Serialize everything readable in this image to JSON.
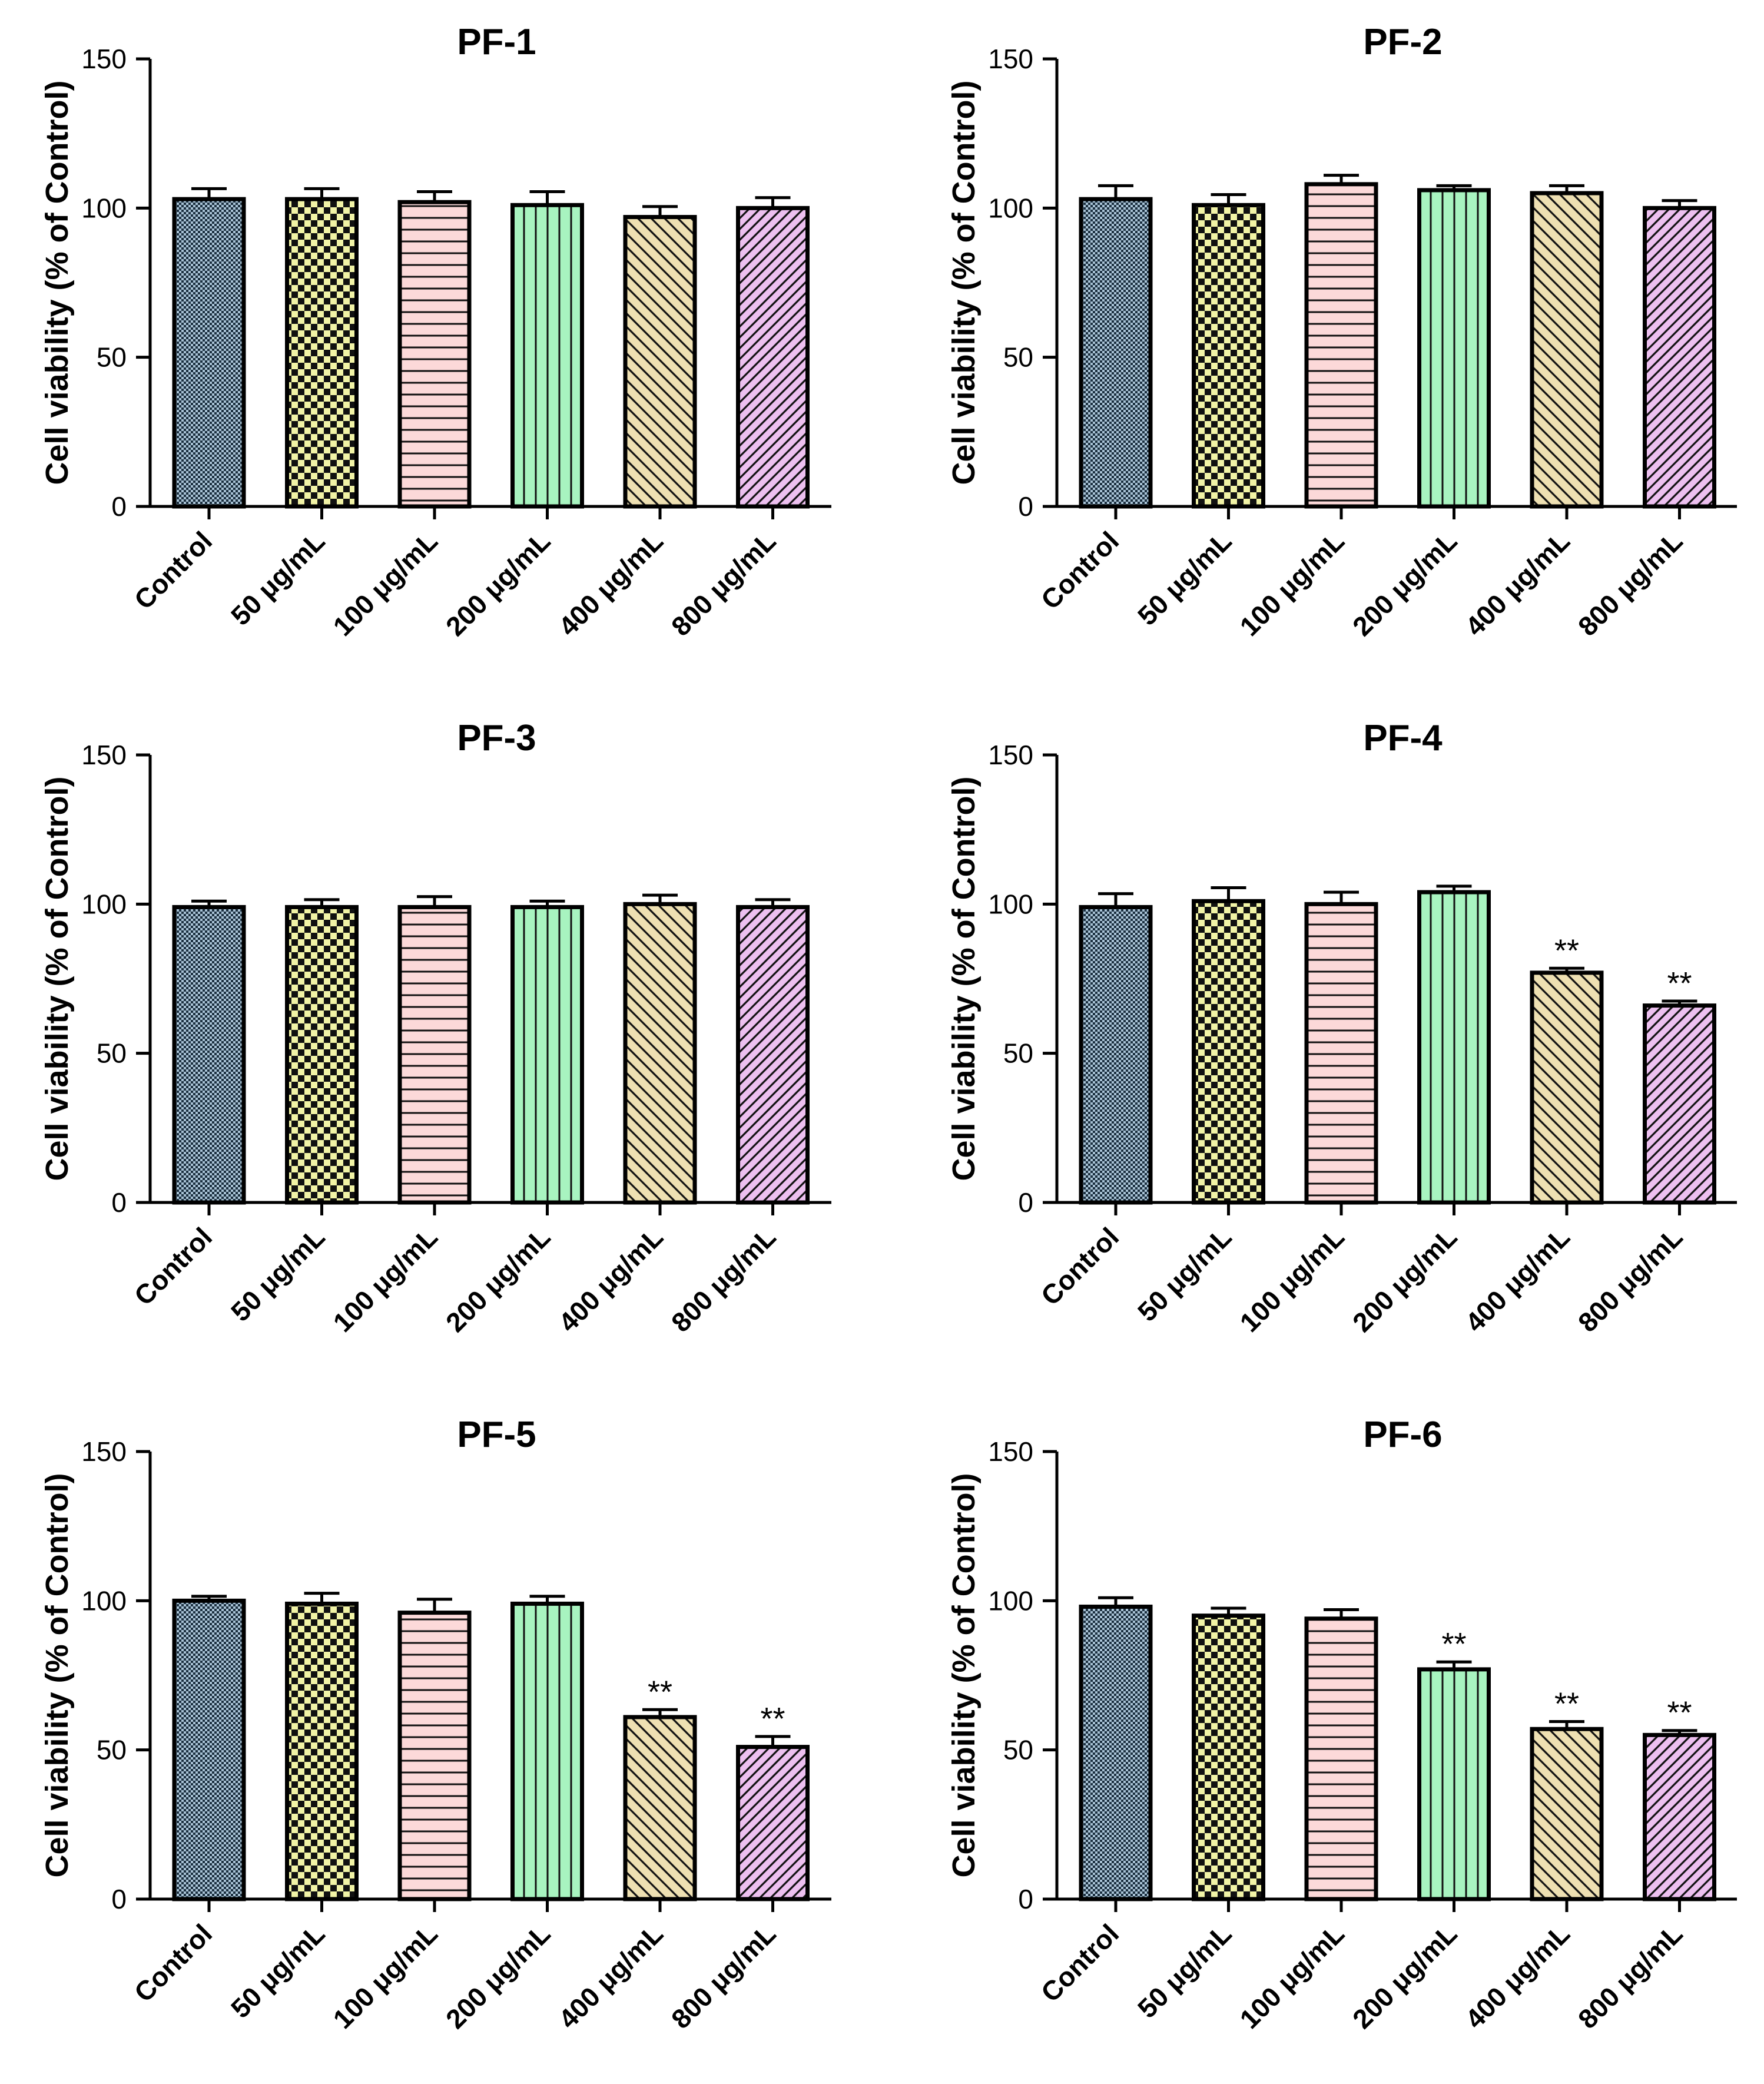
{
  "chart_data": [
    {
      "type": "bar",
      "title": "PF-1",
      "ylabel": "Cell viability (% of Control)",
      "xlabel": "",
      "ylim": [
        0,
        150
      ],
      "yticks": [
        "0",
        "50",
        "100",
        "150"
      ],
      "categories": [
        "Control",
        "50 μg/mL",
        "100 μg/mL",
        "200 μg/mL",
        "400 μg/mL",
        "800 μg/mL"
      ],
      "values": [
        103,
        103,
        102,
        101,
        97,
        100
      ],
      "errors": [
        3.5,
        3.5,
        3.5,
        4.5,
        3.5,
        3.5
      ],
      "significance": [
        "",
        "",
        "",
        "",
        "",
        ""
      ]
    },
    {
      "type": "bar",
      "title": "PF-2",
      "ylabel": "Cell viability (% of Control)",
      "xlabel": "",
      "ylim": [
        0,
        150
      ],
      "yticks": [
        "0",
        "50",
        "100",
        "150"
      ],
      "categories": [
        "Control",
        "50 μg/mL",
        "100 μg/mL",
        "200 μg/mL",
        "400 μg/mL",
        "800 μg/mL"
      ],
      "values": [
        103,
        101,
        108,
        106,
        105,
        100
      ],
      "errors": [
        4.5,
        3.5,
        3.0,
        1.5,
        2.5,
        2.5
      ],
      "significance": [
        "",
        "",
        "",
        "",
        "",
        ""
      ]
    },
    {
      "type": "bar",
      "title": "PF-3",
      "ylabel": "Cell viability (% of Control)",
      "xlabel": "",
      "ylim": [
        0,
        150
      ],
      "yticks": [
        "0",
        "50",
        "100",
        "150"
      ],
      "categories": [
        "Control",
        "50 μg/mL",
        "100 μg/mL",
        "200 μg/mL",
        "400 μg/mL",
        "800 μg/mL"
      ],
      "values": [
        99,
        99,
        99,
        99,
        100,
        99
      ],
      "errors": [
        2.0,
        2.5,
        3.5,
        2.0,
        3.0,
        2.5
      ],
      "significance": [
        "",
        "",
        "",
        "",
        "",
        ""
      ]
    },
    {
      "type": "bar",
      "title": "PF-4",
      "ylabel": "Cell viability (% of Control)",
      "xlabel": "",
      "ylim": [
        0,
        150
      ],
      "yticks": [
        "0",
        "50",
        "100",
        "150"
      ],
      "categories": [
        "Control",
        "50 μg/mL",
        "100 μg/mL",
        "200 μg/mL",
        "400 μg/mL",
        "800 μg/mL"
      ],
      "values": [
        99,
        101,
        100,
        104,
        77,
        66
      ],
      "errors": [
        4.5,
        4.5,
        4.0,
        2.0,
        1.5,
        1.5
      ],
      "significance": [
        "",
        "",
        "",
        "",
        "**",
        "**"
      ]
    },
    {
      "type": "bar",
      "title": "PF-5",
      "ylabel": "Cell viability (% of Control)",
      "xlabel": "",
      "ylim": [
        0,
        150
      ],
      "yticks": [
        "0",
        "50",
        "100",
        "150"
      ],
      "categories": [
        "Control",
        "50 μg/mL",
        "100 μg/mL",
        "200 μg/mL",
        "400 μg/mL",
        "800 μg/mL"
      ],
      "values": [
        100,
        99,
        96,
        99,
        61,
        51
      ],
      "errors": [
        1.5,
        3.5,
        4.5,
        2.5,
        2.5,
        3.5
      ],
      "significance": [
        "",
        "",
        "",
        "",
        "**",
        "**"
      ]
    },
    {
      "type": "bar",
      "title": "PF-6",
      "ylabel": "Cell viability (% of Control)",
      "xlabel": "",
      "ylim": [
        0,
        150
      ],
      "yticks": [
        "0",
        "50",
        "100",
        "150"
      ],
      "categories": [
        "Control",
        "50 μg/mL",
        "100 μg/mL",
        "200 μg/mL",
        "400 μg/mL",
        "800 μg/mL"
      ],
      "values": [
        98,
        95,
        94,
        77,
        57,
        55
      ],
      "errors": [
        3.0,
        2.5,
        3.0,
        2.5,
        2.5,
        1.5
      ],
      "significance": [
        "",
        "",
        "",
        "**",
        "**",
        "**"
      ]
    }
  ],
  "bar_fills": [
    {
      "background": "#a9c3d6",
      "pattern": "fine-check"
    },
    {
      "background": "#f1f3a6",
      "pattern": "check"
    },
    {
      "background": "#fcd9d9",
      "pattern": "horizontal"
    },
    {
      "background": "#a8f4c0",
      "pattern": "vertical"
    },
    {
      "background": "#eee0b2",
      "pattern": "diagonal"
    },
    {
      "background": "#edc0f0",
      "pattern": "diagonal"
    }
  ],
  "colors": {
    "ink": "#000000",
    "background": "#ffffff"
  }
}
